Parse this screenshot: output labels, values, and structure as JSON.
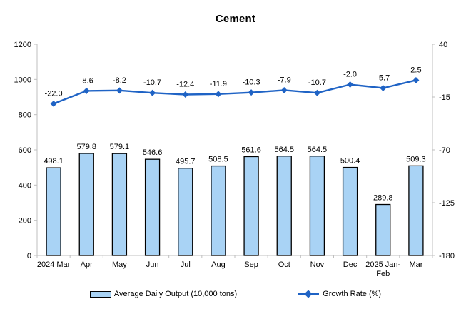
{
  "chart_data": {
    "type": "combo",
    "title": "Cement",
    "categories": [
      "2024 Mar",
      "Apr",
      "May",
      "Jun",
      "Jul",
      "Aug",
      "Sep",
      "Oct",
      "Nov",
      "Dec",
      "2025 Jan-\nFeb",
      "Mar"
    ],
    "series": [
      {
        "name": "Average Daily Output (10,000 tons)",
        "type": "bar",
        "axis": "left",
        "values": [
          498.1,
          579.8,
          579.1,
          546.6,
          495.7,
          508.5,
          561.6,
          564.5,
          564.5,
          500.4,
          289.8,
          509.3
        ],
        "labels": [
          "498.1",
          "579.8",
          "579.1",
          "546.6",
          "495.7",
          "508.5",
          "561.6",
          "564.5",
          "564.5",
          "500.4",
          "289.8",
          "509.3"
        ],
        "fill": "#A9D3F5",
        "stroke": "#000000"
      },
      {
        "name": "Growth Rate (%)",
        "type": "line",
        "axis": "right",
        "values": [
          -22.0,
          -8.6,
          -8.2,
          -10.7,
          -12.4,
          -11.9,
          -10.3,
          -7.9,
          -10.7,
          -2.0,
          -5.7,
          2.5
        ],
        "labels": [
          "-22.0",
          "-8.6",
          "-8.2",
          "-10.7",
          "-12.4",
          "-11.9",
          "-10.3",
          "-7.9",
          "-10.7",
          "-2.0",
          "-5.7",
          "2.5"
        ],
        "color": "#1F63C5",
        "marker": "diamond"
      }
    ],
    "left_axis": {
      "min": 0,
      "max": 1200,
      "ticks": [
        0,
        200,
        400,
        600,
        800,
        1000,
        1200
      ]
    },
    "right_axis": {
      "min": -180,
      "max": 40,
      "ticks": [
        40,
        -15,
        -70,
        -125,
        -180
      ]
    },
    "grid": false,
    "legend_position": "bottom"
  },
  "colors": {
    "axis": "#BFBFBF",
    "text": "#000000",
    "background": "#FFFFFF",
    "bar_fill": "#A9D3F5",
    "bar_stroke": "#000000",
    "line": "#1F63C5"
  }
}
